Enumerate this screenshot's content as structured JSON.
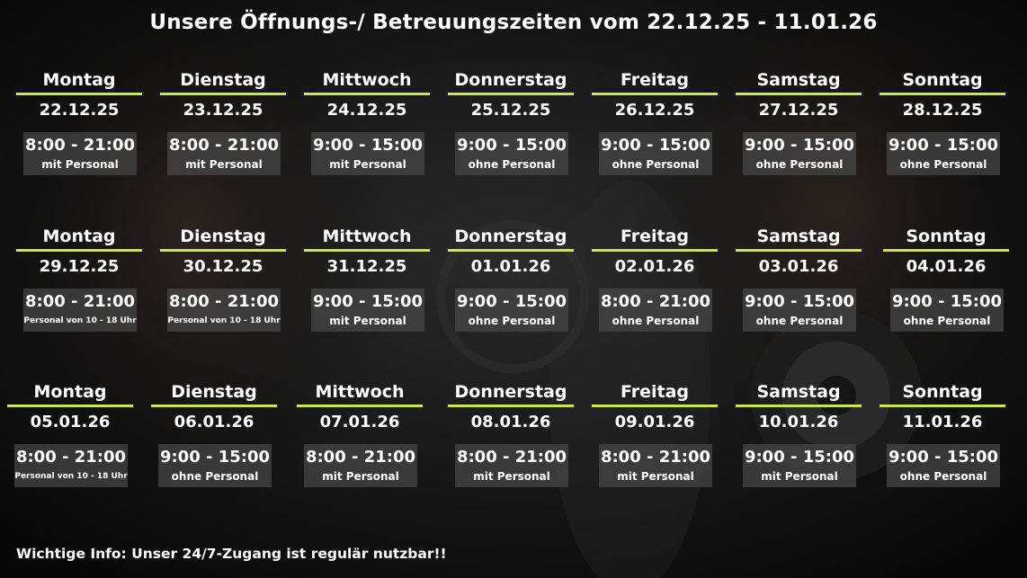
{
  "title": "Unsere Öffnungs-/ Betreuungszeiten vom 22.12.25 - 11.01.26",
  "footer": "Wichtige Info: Unser 24/7-Zugang ist regulär nutzbar!!",
  "colors": {
    "accent_line": "#c9e84a",
    "box": "#484848",
    "background": "#0b0b0b"
  },
  "weeks": [
    {
      "days": [
        {
          "day": "Montag",
          "date": "22.12.25",
          "time": "8:00 - 21:00",
          "note": "mit Personal"
        },
        {
          "day": "Dienstag",
          "date": "23.12.25",
          "time": "8:00 - 21:00",
          "note": "mit Personal"
        },
        {
          "day": "Mittwoch",
          "date": "24.12.25",
          "time": "9:00 - 15:00",
          "note": "mit Personal"
        },
        {
          "day": "Donnerstag",
          "date": "25.12.25",
          "time": "9:00 - 15:00",
          "note": "ohne Personal"
        },
        {
          "day": "Freitag",
          "date": "26.12.25",
          "time": "9:00 - 15:00",
          "note": "ohne Personal"
        },
        {
          "day": "Samstag",
          "date": "27.12.25",
          "time": "9:00 - 15:00",
          "note": "ohne Personal"
        },
        {
          "day": "Sonntag",
          "date": "28.12.25",
          "time": "9:00 - 15:00",
          "note": "ohne Personal"
        }
      ]
    },
    {
      "days": [
        {
          "day": "Montag",
          "date": "29.12.25",
          "time": "8:00 - 21:00",
          "note": "Personal von 10 - 18 Uhr"
        },
        {
          "day": "Dienstag",
          "date": "30.12.25",
          "time": "8:00 - 21:00",
          "note": "Personal von 10 - 18 Uhr"
        },
        {
          "day": "Mittwoch",
          "date": "31.12.25",
          "time": "9:00 - 15:00",
          "note": "mit Personal"
        },
        {
          "day": "Donnerstag",
          "date": "01.01.26",
          "time": "9:00 - 15:00",
          "note": "ohne Personal"
        },
        {
          "day": "Freitag",
          "date": "02.01.26",
          "time": "8:00 - 21:00",
          "note": "ohne Personal"
        },
        {
          "day": "Samstag",
          "date": "03.01.26",
          "time": "9:00 - 15:00",
          "note": "ohne Personal"
        },
        {
          "day": "Sonntag",
          "date": "04.01.26",
          "time": "9:00 - 15:00",
          "note": "ohne Personal"
        }
      ]
    },
    {
      "days": [
        {
          "day": "Montag",
          "date": "05.01.26",
          "time": "8:00 - 21:00",
          "note": "Personal von 10 - 18 Uhr"
        },
        {
          "day": "Dienstag",
          "date": "06.01.26",
          "time": "9:00 - 15:00",
          "note": "ohne Personal"
        },
        {
          "day": "Mittwoch",
          "date": "07.01.26",
          "time": "8:00 - 21:00",
          "note": "mit Personal"
        },
        {
          "day": "Donnerstag",
          "date": "08.01.26",
          "time": "8:00 - 21:00",
          "note": "mit Personal"
        },
        {
          "day": "Freitag",
          "date": "09.01.26",
          "time": "8:00 - 21:00",
          "note": "mit Personal"
        },
        {
          "day": "Samstag",
          "date": "10.01.26",
          "time": "9:00 - 15:00",
          "note": "mit Personal"
        },
        {
          "day": "Sonntag",
          "date": "11.01.26",
          "time": "9:00 - 15:00",
          "note": "ohne Personal"
        }
      ]
    }
  ]
}
